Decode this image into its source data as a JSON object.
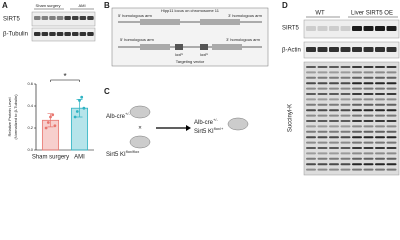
{
  "panels": {
    "a": {
      "label": "A",
      "blots": [
        "SIRT5",
        "β-Tubulin"
      ],
      "groups": [
        "Sham surgery",
        "AMI"
      ]
    },
    "b": {
      "label": "B",
      "top_left": "5' homologous arm",
      "top_center": "Hipp11 locus on chromosome 11",
      "top_right": "3' homologous arm",
      "vec_left": "5' homologous arm",
      "vec_right": "3' homologous arm",
      "loxp": [
        "loxP",
        "loxP"
      ],
      "vector": "Targeting vector"
    },
    "c": {
      "label": "C",
      "parent1": {
        "text": "Alb-cre",
        "sup": "+/-"
      },
      "parent2": {
        "text": "Sirt5 KI",
        "sup": "flox/flox"
      },
      "cross": "×",
      "child": [
        {
          "text": "Alb-cre",
          "sup": "+/-"
        },
        {
          "text": "Sirt5 KI",
          "sup": "flox/+"
        }
      ]
    },
    "d": {
      "label": "D",
      "groups": [
        "WT",
        "Liver SIRT5 OE"
      ],
      "blots": [
        "SIRT5",
        "β-Actin",
        "Succinyl-K"
      ]
    }
  },
  "chart_data": {
    "type": "bar",
    "categories": [
      "Sham surgery",
      "AMI"
    ],
    "values": [
      0.27,
      0.38
    ],
    "errors": [
      0.06,
      0.08
    ],
    "points": [
      [
        0.2,
        0.25,
        0.3,
        0.32,
        0.22
      ],
      [
        0.3,
        0.35,
        0.45,
        0.48,
        0.38
      ]
    ],
    "colors": [
      "#e8766f",
      "#2fb3c3"
    ],
    "ylabel": [
      "Relative Protein Level",
      "(Normalized to β-Tubulin)"
    ],
    "ylim": [
      0,
      0.6
    ],
    "yticks": [
      {
        "value": 0,
        "label": "0.0"
      },
      {
        "value": 0.2,
        "label": "0.2"
      },
      {
        "value": 0.4,
        "label": "0.4"
      },
      {
        "value": 0.6,
        "label": "0.6"
      }
    ],
    "annotation": "*"
  }
}
